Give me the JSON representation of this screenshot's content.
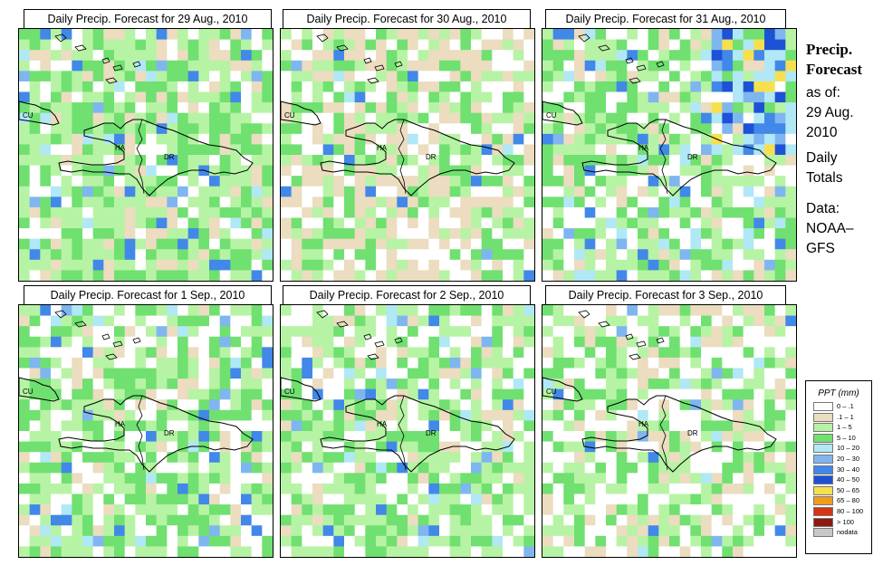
{
  "panels": [
    {
      "title": "Daily Precip. Forecast for  29 Aug., 2010",
      "seed": 7,
      "wet": 0.62,
      "dry": 0.12,
      "heavy": 0.1,
      "storm": false
    },
    {
      "title": "Daily Precip. Forecast for  30 Aug., 2010",
      "seed": 19,
      "wet": 0.38,
      "dry": 0.3,
      "heavy": 0.03,
      "storm": false
    },
    {
      "title": "Daily Precip. Forecast for  31 Aug., 2010",
      "seed": 31,
      "wet": 0.5,
      "dry": 0.12,
      "heavy": 0.1,
      "storm": true
    },
    {
      "title": "Daily Precip. Forecast for  1 Sep., 2010",
      "seed": 43,
      "wet": 0.55,
      "dry": 0.1,
      "heavy": 0.08,
      "storm": false
    },
    {
      "title": "Daily Precip. Forecast for  2 Sep., 2010",
      "seed": 57,
      "wet": 0.55,
      "dry": 0.12,
      "heavy": 0.08,
      "storm": false
    },
    {
      "title": "Daily Precip. Forecast for  3 Sep., 2010",
      "seed": 71,
      "wet": 0.45,
      "dry": 0.15,
      "heavy": 0.05,
      "storm": false
    }
  ],
  "map_labels": {
    "cuba": "CU",
    "haiti": "HA",
    "dominican_republic": "DR"
  },
  "side": {
    "title_line1": "Precip.",
    "title_line2": "Forecast",
    "asof": "as of:",
    "date_line1": "29 Aug.",
    "date_line2": "2010",
    "daily_line1": "Daily",
    "daily_line2": "Totals",
    "data_line1": "Data:",
    "data_line2": "NOAA–",
    "data_line3": "GFS"
  },
  "legend": {
    "title": "PPT (mm)",
    "items": [
      {
        "label": "0 – .1",
        "color": "#ffffff"
      },
      {
        "label": ".1 – 1",
        "color": "#ecdcc0"
      },
      {
        "label": "1 – 5",
        "color": "#b7f3a4"
      },
      {
        "label": "5 – 10",
        "color": "#70e070"
      },
      {
        "label": "10 – 20",
        "color": "#b0e8f5"
      },
      {
        "label": "20 – 30",
        "color": "#7fb6f0"
      },
      {
        "label": "30 – 40",
        "color": "#4188e8"
      },
      {
        "label": "40 – 50",
        "color": "#1d52d6"
      },
      {
        "label": "50 – 65",
        "color": "#f6e04e"
      },
      {
        "label": "65 – 80",
        "color": "#f29c1e"
      },
      {
        "label": "80 – 100",
        "color": "#d63412"
      },
      {
        "label": "> 100",
        "color": "#8c1a10"
      },
      {
        "label": "nodata",
        "color": "#c8c8c8"
      }
    ]
  }
}
